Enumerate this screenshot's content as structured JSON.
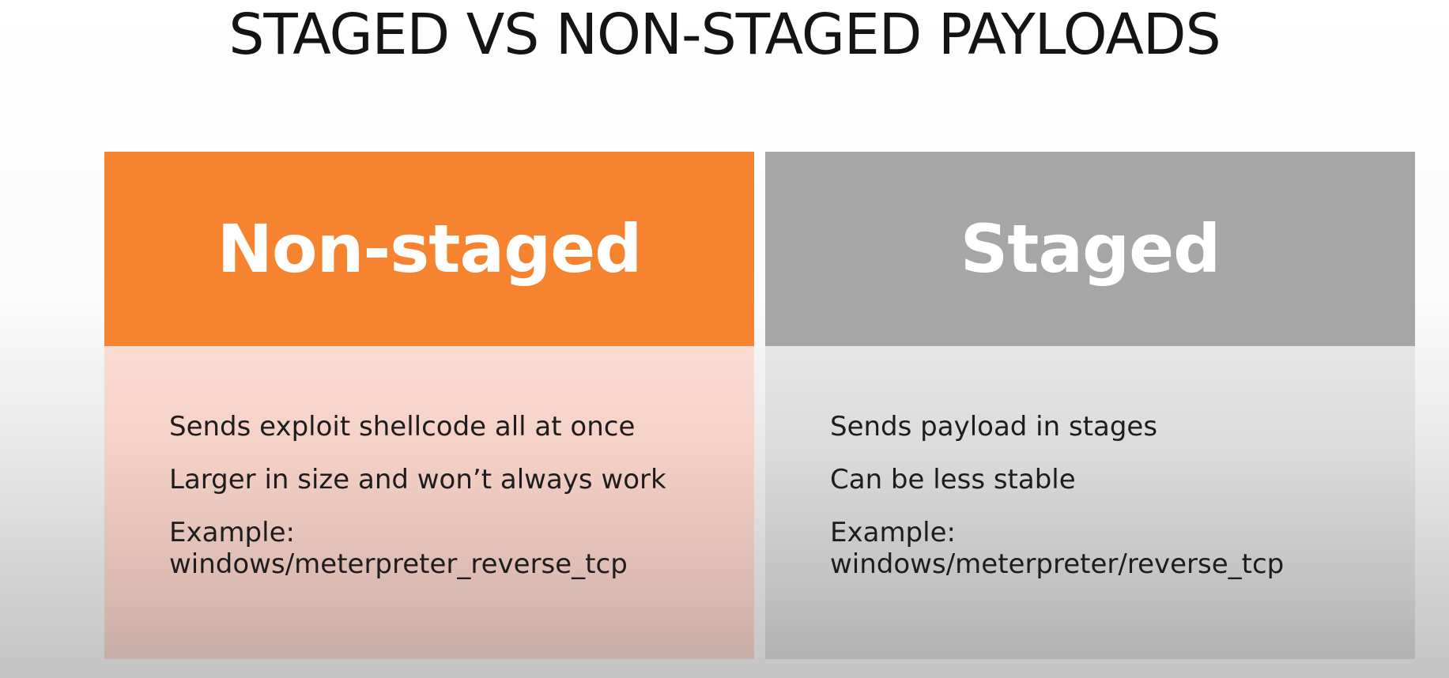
{
  "slide": {
    "title": "STAGED VS NON-STAGED PAYLOADS"
  },
  "columns": [
    {
      "header": "Non-staged",
      "accent_color": "#f6832f",
      "points": [
        "Sends exploit shellcode all at once",
        "Larger in size and won’t always work"
      ],
      "example_label": "Example:",
      "example_value": "windows/meterpreter_reverse_tcp"
    },
    {
      "header": "Staged",
      "accent_color": "#a6a6a6",
      "points": [
        "Sends payload in stages",
        "Can be less stable"
      ],
      "example_label": "Example:",
      "example_value": "windows/meterpreter/reverse_tcp"
    }
  ]
}
